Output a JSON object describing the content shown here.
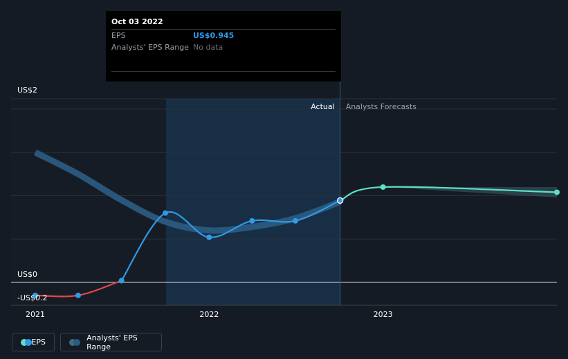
{
  "tooltip": {
    "date": "Oct 03 2022",
    "eps_label": "EPS",
    "eps_value": "US$0.945",
    "range_label": "Analysts' EPS Range",
    "range_value": "No data"
  },
  "labels": {
    "actual": "Actual",
    "forecast": "Analysts Forecasts"
  },
  "legend": {
    "eps": "EPS",
    "range": "Analysts' EPS Range"
  },
  "colors": {
    "background": "#151b24",
    "eps_line": "#2f9ae6",
    "eps_negative": "#e0474c",
    "forecast_line": "#5ee0c6",
    "range_band": "#2b5a80",
    "past_shade": "#1a3650"
  },
  "chart_data": {
    "type": "line",
    "y_ticks": [
      {
        "value": 2,
        "label": "US$2"
      },
      {
        "value": 0,
        "label": "US$0"
      },
      {
        "value": -0.2,
        "label": "-US$0.2"
      }
    ],
    "ylim": [
      -0.2,
      2
    ],
    "x_ticks": [
      {
        "date": "2021-01-01",
        "label": "2021"
      },
      {
        "date": "2022-01-01",
        "label": "2022"
      },
      {
        "date": "2023-01-01",
        "label": "2023"
      }
    ],
    "xlim": [
      "2020-12-01",
      "2023-12-31"
    ],
    "actual_cutoff": "2022-10-03",
    "series": [
      {
        "name": "EPS",
        "points": [
          {
            "x": "2021-01-01",
            "y": -0.15
          },
          {
            "x": "2021-04-01",
            "y": -0.15
          },
          {
            "x": "2021-07-01",
            "y": 0.02
          },
          {
            "x": "2021-10-01",
            "y": 0.8
          },
          {
            "x": "2022-01-01",
            "y": 0.52
          },
          {
            "x": "2022-04-01",
            "y": 0.71
          },
          {
            "x": "2022-07-01",
            "y": 0.71
          },
          {
            "x": "2022-10-03",
            "y": 0.945
          }
        ]
      },
      {
        "name": "EPS",
        "points": [
          {
            "x": "2022-10-03",
            "y": 0.945
          },
          {
            "x": "2023-01-01",
            "y": 1.1
          },
          {
            "x": "2024-01-01",
            "y": 1.04
          }
        ]
      },
      {
        "name": "Analysts' EPS Range",
        "points": [
          {
            "x": "2021-01-01",
            "y": 1.5
          },
          {
            "x": "2021-04-01",
            "y": 1.25
          },
          {
            "x": "2021-07-01",
            "y": 0.95
          },
          {
            "x": "2021-10-01",
            "y": 0.7
          },
          {
            "x": "2022-01-01",
            "y": 0.6
          },
          {
            "x": "2022-04-01",
            "y": 0.64
          },
          {
            "x": "2022-07-01",
            "y": 0.74
          },
          {
            "x": "2022-10-03",
            "y": 0.93
          }
        ]
      }
    ],
    "forecast_band": [
      {
        "x": "2023-01-01",
        "low": 1.1,
        "high": 1.1
      },
      {
        "x": "2024-01-01",
        "low": 0.98,
        "high": 1.1
      }
    ],
    "grid": true,
    "legend_position": "bottom-left"
  }
}
